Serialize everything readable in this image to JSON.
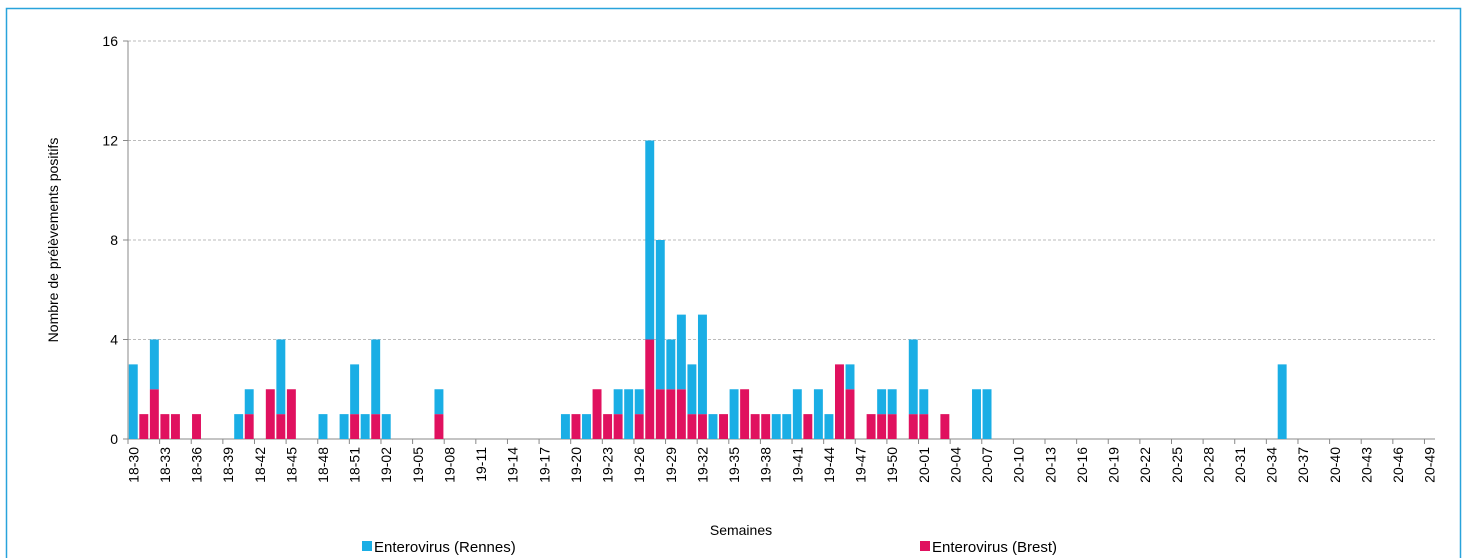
{
  "chart_data": {
    "type": "stacked_bar",
    "y_label": "Nombre de prélèvements positifs",
    "x_label": "Semaines",
    "categories": [
      "18-30",
      null,
      null,
      "18-33",
      null,
      null,
      "18-36",
      null,
      null,
      "18-39",
      null,
      null,
      "18-42",
      null,
      null,
      "18-45",
      null,
      null,
      "18-48",
      null,
      null,
      "18-51",
      null,
      null,
      "19-02",
      null,
      null,
      "19-05",
      null,
      null,
      "19-08",
      null,
      null,
      "19-11",
      null,
      null,
      "19-14",
      null,
      null,
      "19-17",
      null,
      null,
      "19-20",
      null,
      null,
      "19-23",
      null,
      null,
      "19-26",
      null,
      null,
      "19-29",
      null,
      null,
      "19-32",
      null,
      null,
      "19-35",
      null,
      null,
      "19-38",
      null,
      null,
      "19-41",
      null,
      null,
      "19-44",
      null,
      null,
      "19-47",
      null,
      null,
      "19-50",
      null,
      null,
      "20-01",
      null,
      null,
      "20-04",
      null,
      null,
      "20-07",
      null,
      null,
      "20-10",
      null,
      null,
      "20-13",
      null,
      null,
      "20-16",
      null,
      null,
      "20-19",
      null,
      null,
      "20-22",
      null,
      null,
      "20-25",
      null,
      null,
      "20-28",
      null,
      null,
      "20-31",
      null,
      null,
      "20-34",
      null,
      null,
      "20-37",
      null,
      null,
      "20-40",
      null,
      null,
      "20-43",
      null,
      null,
      "20-46",
      null,
      null,
      "20-49"
    ],
    "series": [
      {
        "name": "Enterovirus (Rennes)",
        "color": "#1aaee5",
        "values": [
          3,
          0,
          2,
          0,
          0,
          0,
          0,
          0,
          0,
          0,
          1,
          1,
          0,
          0,
          3,
          0,
          0,
          0,
          1,
          0,
          1,
          2,
          1,
          3,
          1,
          0,
          0,
          0,
          0,
          1,
          0,
          0,
          0,
          0,
          0,
          0,
          0,
          0,
          0,
          0,
          0,
          1,
          0,
          1,
          0,
          0,
          1,
          2,
          1,
          8,
          6,
          2,
          3,
          2,
          4,
          1,
          0,
          2,
          0,
          0,
          0,
          1,
          1,
          2,
          0,
          2,
          1,
          0,
          1,
          0,
          0,
          1,
          1,
          0,
          3,
          1,
          0,
          0,
          0,
          0,
          2,
          2,
          0,
          0,
          0,
          0,
          0,
          0,
          0,
          0,
          0,
          0,
          0,
          0,
          0,
          0,
          0,
          0,
          0,
          0,
          0,
          0,
          0,
          0,
          0,
          0,
          0,
          0,
          0,
          3,
          0,
          0,
          0,
          0,
          0,
          0,
          0,
          0,
          0,
          0,
          0,
          0,
          0,
          0
        ]
      },
      {
        "name": "Enterovirus (Brest)",
        "color": "#e0115f",
        "values": [
          0,
          1,
          2,
          1,
          1,
          0,
          1,
          0,
          0,
          0,
          0,
          1,
          0,
          2,
          1,
          2,
          0,
          0,
          0,
          0,
          0,
          1,
          0,
          1,
          0,
          0,
          0,
          0,
          0,
          1,
          0,
          0,
          0,
          0,
          0,
          0,
          0,
          0,
          0,
          0,
          0,
          0,
          1,
          0,
          2,
          1,
          1,
          0,
          1,
          4,
          2,
          2,
          2,
          1,
          1,
          0,
          1,
          0,
          2,
          1,
          1,
          0,
          0,
          0,
          1,
          0,
          0,
          3,
          2,
          0,
          1,
          1,
          1,
          0,
          1,
          1,
          0,
          1,
          0,
          0,
          0,
          0,
          0,
          0,
          0,
          0,
          0,
          0,
          0,
          0,
          0,
          0,
          0,
          0,
          0,
          0,
          0,
          0,
          0,
          0,
          0,
          0,
          0,
          0,
          0,
          0,
          0,
          0,
          0,
          0,
          0,
          0,
          0,
          0,
          0,
          0,
          0,
          0,
          0,
          0,
          0,
          0,
          0,
          0
        ]
      }
    ],
    "ylim": [
      0,
      16
    ],
    "yticks": [
      0,
      4,
      8,
      12,
      16
    ],
    "grid": true
  }
}
